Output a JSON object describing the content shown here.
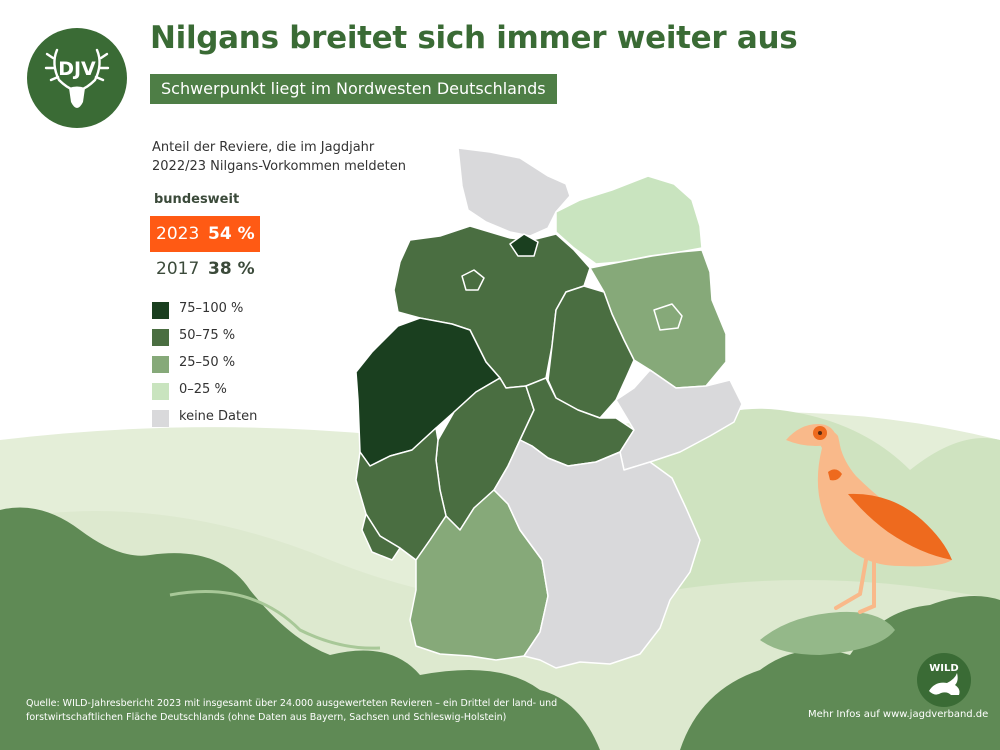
{
  "header": {
    "title": "Nilgans breitet sich immer weiter aus",
    "subtitle": "Schwerpunkt liegt im Nordwesten Deutschlands"
  },
  "caption": "Anteil der Reviere, die im Jagdjahr 2022/23 Nilgans-Vorkommen meldeten",
  "national": {
    "heading": "bundesweit",
    "rows": [
      {
        "year": "2023",
        "value": "54 %"
      },
      {
        "year": "2017",
        "value": "38 %"
      }
    ]
  },
  "legend": [
    {
      "label": "75–100 %",
      "color": "#1a3f1f"
    },
    {
      "label": "50–75 %",
      "color": "#4a6e41"
    },
    {
      "label": "25–50 %",
      "color": "#86a979"
    },
    {
      "label": "0–25 %",
      "color": "#c9e4bf"
    },
    {
      "label": "keine Daten",
      "color": "#d9d9db"
    }
  ],
  "states": [
    {
      "id": "SH",
      "category": "keine Daten"
    },
    {
      "id": "HH",
      "category": "75–100 %"
    },
    {
      "id": "MV",
      "category": "0–25 %"
    },
    {
      "id": "HB",
      "category": "50–75 %"
    },
    {
      "id": "NI",
      "category": "50–75 %"
    },
    {
      "id": "BE",
      "category": "25–50 %"
    },
    {
      "id": "BB",
      "category": "25–50 %"
    },
    {
      "id": "ST",
      "category": "50–75 %"
    },
    {
      "id": "NW",
      "category": "75–100 %"
    },
    {
      "id": "HE",
      "category": "50–75 %"
    },
    {
      "id": "TH",
      "category": "50–75 %"
    },
    {
      "id": "SN",
      "category": "keine Daten"
    },
    {
      "id": "RP",
      "category": "50–75 %"
    },
    {
      "id": "SL",
      "category": "50–75 %"
    },
    {
      "id": "BW",
      "category": "25–50 %"
    },
    {
      "id": "BY",
      "category": "keine Daten"
    }
  ],
  "logos": {
    "djv": "DJV",
    "wild": "WILD"
  },
  "icons": [
    "djv-deer-antler-icon",
    "wild-hare-icon",
    "nile-goose-illustration"
  ],
  "colors": {
    "title": "#3a6b35",
    "highlight": "#ff5a14",
    "goose": "#f9b98a",
    "goose_accent": "#ee6a1e"
  },
  "footer": {
    "source": "Quelle: WILD-Jahresbericht 2023 mit insgesamt über 24.000 ausgewerteten Revieren – ein Drittel der land- und forstwirtschaftlichen Fläche Deutschlands (ohne Daten aus Bayern, Sachsen und Schleswig-Holstein)",
    "more": "Mehr Infos auf www.jagdverband.de"
  }
}
